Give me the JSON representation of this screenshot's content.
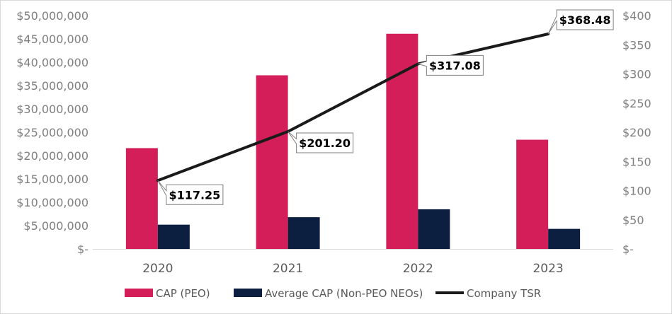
{
  "chart_data": {
    "type": "bar",
    "categories": [
      "2020",
      "2021",
      "2022",
      "2023"
    ],
    "series": [
      {
        "name": "CAP (PEO)",
        "kind": "bar",
        "axis": "left",
        "color": "#d41e5a",
        "values": [
          21600000,
          37200000,
          46100000,
          23400000
        ]
      },
      {
        "name": "Average CAP (Non-PEO NEOs)",
        "kind": "bar",
        "axis": "left",
        "color": "#0c1f40",
        "values": [
          5200000,
          6800000,
          8500000,
          4300000
        ]
      },
      {
        "name": "Company TSR",
        "kind": "line",
        "axis": "right",
        "color": "#1a1a1a",
        "values": [
          117.25,
          201.2,
          317.08,
          368.48
        ],
        "labels": [
          "$117.25",
          "$201.20",
          "$317.08",
          "$368.48"
        ]
      }
    ],
    "y_left": {
      "min": 0,
      "max": 50000000,
      "step": 5000000,
      "tick_labels": [
        "$-",
        "$5,000,000",
        "$10,000,000",
        "$15,000,000",
        "$20,000,000",
        "$25,000,000",
        "$30,000,000",
        "$35,000,000",
        "$40,000,000",
        "$45,000,000",
        "$50,000,000"
      ]
    },
    "y_right": {
      "min": 0,
      "max": 400,
      "step": 50,
      "tick_labels": [
        "$-",
        "$50",
        "$100",
        "$150",
        "$200",
        "$250",
        "$300",
        "$350",
        "$400"
      ]
    },
    "grid": false,
    "legend_position": "bottom"
  }
}
